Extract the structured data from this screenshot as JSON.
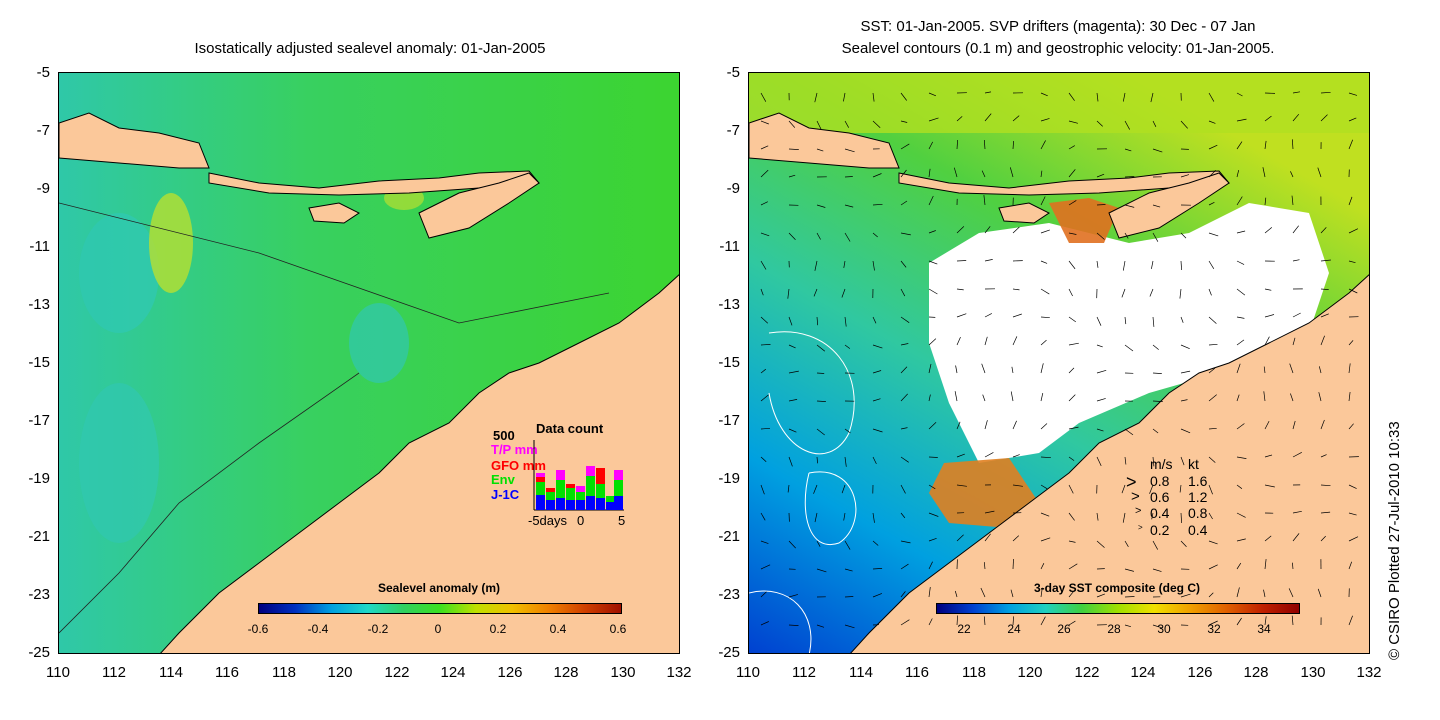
{
  "left_panel": {
    "title": "Isostatically adjusted sealevel anomaly: 01-Jan-2005",
    "y_ticks": [
      "-5",
      "-7",
      "-9",
      "-11",
      "-13",
      "-15",
      "-17",
      "-19",
      "-21",
      "-23",
      "-25"
    ],
    "x_ticks": [
      "110",
      "112",
      "114",
      "116",
      "118",
      "120",
      "122",
      "124",
      "126",
      "128",
      "130",
      "132"
    ],
    "colorbar": {
      "title": "Sealevel anomaly (m)",
      "ticks": [
        "-0.6",
        "-0.4",
        "-0.2",
        "0",
        "0.2",
        "0.4",
        "0.6"
      ],
      "colors": [
        "#00007f",
        "#0030c0",
        "#00a0e0",
        "#20d8c8",
        "#30d060",
        "#3ce020",
        "#c0e000",
        "#f0c000",
        "#f08000",
        "#d04000",
        "#a01000"
      ]
    },
    "data_count": {
      "title": "Data count",
      "max_label": "500",
      "series": [
        {
          "name": "T/P mm",
          "color": "#ff00ff"
        },
        {
          "name": "GFO mm",
          "color": "#ff0000"
        },
        {
          "name": "Env",
          "color": "#00e000"
        },
        {
          "name": "J-1C",
          "color": "#0000ff"
        }
      ],
      "x_labels": [
        "-5days",
        "0",
        "5"
      ]
    }
  },
  "right_panel": {
    "title_line1": "SST: 01-Jan-2005. SVP drifters (magenta): 30 Dec - 07 Jan",
    "title_line2": "Sealevel contours (0.1 m) and geostrophic velocity: 01-Jan-2005.",
    "y_ticks": [
      "-5",
      "-7",
      "-9",
      "-11",
      "-13",
      "-15",
      "-17",
      "-19",
      "-21",
      "-23",
      "-25"
    ],
    "x_ticks": [
      "110",
      "112",
      "114",
      "116",
      "118",
      "120",
      "122",
      "124",
      "126",
      "128",
      "130",
      "132"
    ],
    "colorbar": {
      "title": "3-day SST composite (deg C)",
      "ticks": [
        "22",
        "24",
        "26",
        "28",
        "30",
        "32",
        "34"
      ],
      "colors": [
        "#00007f",
        "#0040d0",
        "#00a0e0",
        "#20d0c0",
        "#40d040",
        "#a0e000",
        "#f0e000",
        "#f0a000",
        "#e06000",
        "#c02000",
        "#900000"
      ]
    },
    "velocity_legend": {
      "header_ms": "m/s",
      "header_kt": "kt",
      "rows": [
        {
          "ms": "0.8",
          "kt": "1.6"
        },
        {
          "ms": "0.6",
          "kt": "1.2"
        },
        {
          "ms": "0.4",
          "kt": "0.8"
        },
        {
          "ms": "0.2",
          "kt": "0.4"
        }
      ]
    }
  },
  "colors": {
    "land": "#fbc89a",
    "ocean_green": "#3cd23c",
    "ocean_cyan": "#2fc8b0",
    "cloud": "#ffffff"
  },
  "copyright": "© CSIRO Plotted 27-Jul-2010 10:33"
}
